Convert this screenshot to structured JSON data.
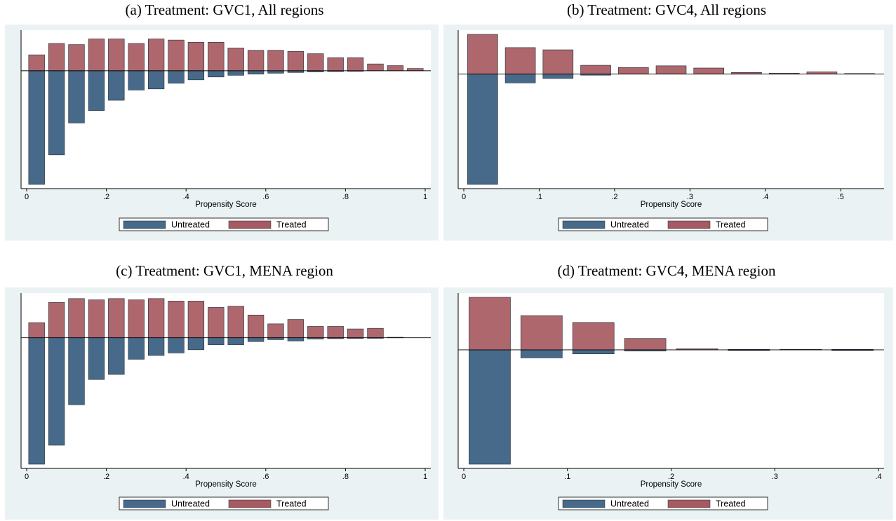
{
  "colors": {
    "untreated": "#476a8a",
    "treated": "#a65a61",
    "plot_bg": "#ffffff",
    "outer_bg": "#eaf2f3"
  },
  "panels": [
    {
      "title": "(a) Treatment: GVC1, All regions",
      "xlabel": "Propensity Score",
      "legend": [
        "Untreated",
        "Treated"
      ],
      "chart_data": {
        "type": "bar",
        "title": "(a) Treatment: GVC1, All regions",
        "xlabel": "Propensity Score",
        "xlim": [
          0,
          1
        ],
        "xticks": [
          0,
          0.2,
          0.4,
          0.6,
          0.8,
          1
        ],
        "xtick_labels": [
          "0",
          ".2",
          ".4",
          ".6",
          ".8",
          "1"
        ],
        "ylim": [
          -1,
          0.32
        ],
        "bin_width": 0.05,
        "x": [
          0.025,
          0.075,
          0.125,
          0.175,
          0.225,
          0.275,
          0.325,
          0.375,
          0.425,
          0.475,
          0.525,
          0.575,
          0.625,
          0.675,
          0.725,
          0.775,
          0.825,
          0.875,
          0.925,
          0.975
        ],
        "series": [
          {
            "name": "Untreated",
            "values": [
              -1.0,
              -0.74,
              -0.46,
              -0.35,
              -0.26,
              -0.17,
              -0.16,
              -0.11,
              -0.08,
              -0.055,
              -0.04,
              -0.03,
              -0.022,
              -0.015,
              -0.01,
              -0.007,
              -0.004,
              0,
              0,
              0
            ]
          },
          {
            "name": "Treated",
            "values": [
              0.14,
              0.24,
              0.23,
              0.28,
              0.28,
              0.24,
              0.28,
              0.27,
              0.25,
              0.25,
              0.2,
              0.18,
              0.18,
              0.17,
              0.15,
              0.115,
              0.115,
              0.06,
              0.045,
              0.02
            ]
          }
        ],
        "legend": [
          "Untreated",
          "Treated"
        ],
        "legend_position": "bottom",
        "grid": false
      }
    },
    {
      "title": "(b) Treatment: GVC4, All regions",
      "xlabel": "Propensity Score",
      "legend": [
        "Untreated",
        "Treated"
      ],
      "chart_data": {
        "type": "bar",
        "title": "(b) Treatment: GVC4, All regions",
        "xlabel": "Propensity Score",
        "xlim": [
          0,
          0.55
        ],
        "xticks": [
          0,
          0.1,
          0.2,
          0.3,
          0.4,
          0.5
        ],
        "xtick_labels": [
          "0",
          ".1",
          ".2",
          ".3",
          ".4",
          ".5"
        ],
        "ylim": [
          -1,
          0.36
        ],
        "bin_width": 0.05,
        "x": [
          0.025,
          0.075,
          0.125,
          0.175,
          0.225,
          0.275,
          0.325,
          0.375,
          0.425,
          0.475,
          0.525
        ],
        "series": [
          {
            "name": "Untreated",
            "values": [
              -1.0,
              -0.08,
              -0.04,
              -0.01,
              0,
              0,
              0,
              0,
              0,
              0,
              0
            ]
          },
          {
            "name": "Treated",
            "values": [
              0.36,
              0.24,
              0.22,
              0.08,
              0.06,
              0.075,
              0.055,
              0.015,
              0.008,
              0.02,
              0.005
            ]
          }
        ],
        "legend": [
          "Untreated",
          "Treated"
        ],
        "legend_position": "bottom",
        "grid": false
      }
    },
    {
      "title": "(c) Treatment: GVC1, MENA region",
      "xlabel": "Propensity Score",
      "legend": [
        "Untreated",
        "Treated"
      ],
      "chart_data": {
        "type": "bar",
        "title": "(c) Treatment: GVC1, MENA region",
        "xlabel": "Propensity Score",
        "xlim": [
          0,
          1
        ],
        "xticks": [
          0,
          0.2,
          0.4,
          0.6,
          0.8,
          1
        ],
        "xtick_labels": [
          "0",
          ".2",
          ".4",
          ".6",
          ".8",
          "1"
        ],
        "ylim": [
          -1,
          0.32
        ],
        "bin_width": 0.05,
        "x": [
          0.025,
          0.075,
          0.125,
          0.175,
          0.225,
          0.275,
          0.325,
          0.375,
          0.425,
          0.475,
          0.525,
          0.575,
          0.625,
          0.675,
          0.725,
          0.775,
          0.825,
          0.875,
          0.925
        ],
        "series": [
          {
            "name": "Untreated",
            "values": [
              -1.0,
              -0.85,
              -0.53,
              -0.33,
              -0.29,
              -0.17,
              -0.14,
              -0.12,
              -0.095,
              -0.055,
              -0.055,
              -0.03,
              -0.015,
              -0.025,
              -0.01,
              -0.007,
              -0.005,
              -0.003,
              0
            ]
          },
          {
            "name": "Treated",
            "values": [
              0.12,
              0.28,
              0.31,
              0.3,
              0.31,
              0.3,
              0.31,
              0.29,
              0.29,
              0.24,
              0.25,
              0.18,
              0.11,
              0.145,
              0.09,
              0.09,
              0.07,
              0.075,
              0.004
            ]
          }
        ],
        "legend": [
          "Untreated",
          "Treated"
        ],
        "legend_position": "bottom",
        "grid": false
      }
    },
    {
      "title": "(d) Treatment: GVC4, MENA region",
      "xlabel": "Propensity Score",
      "legend": [
        "Untreated",
        "Treated"
      ],
      "chart_data": {
        "type": "bar",
        "title": "(d) Treatment: GVC4, MENA region",
        "xlabel": "Propensity Score",
        "xlim": [
          0,
          0.4
        ],
        "xticks": [
          0,
          0.1,
          0.2,
          0.3,
          0.4
        ],
        "xtick_labels": [
          "0",
          ".1",
          ".2",
          ".3",
          ".4"
        ],
        "ylim": [
          -1,
          0.46
        ],
        "bin_width": 0.05,
        "x": [
          0.025,
          0.075,
          0.125,
          0.175,
          0.225,
          0.275,
          0.325,
          0.375
        ],
        "series": [
          {
            "name": "Untreated",
            "values": [
              -1.0,
              -0.07,
              -0.035,
              -0.01,
              0,
              -0.005,
              0,
              -0.005
            ]
          },
          {
            "name": "Treated",
            "values": [
              0.46,
              0.3,
              0.24,
              0.1,
              0.01,
              0.005,
              0.005,
              0.005
            ]
          }
        ],
        "legend": [
          "Untreated",
          "Treated"
        ],
        "legend_position": "bottom",
        "grid": false
      }
    }
  ]
}
